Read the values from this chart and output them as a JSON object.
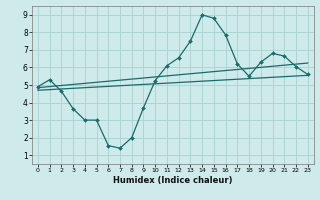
{
  "title": "",
  "xlabel": "Humidex (Indice chaleur)",
  "bg_color": "#ceeaea",
  "grid_color": "#aed4d4",
  "line_color": "#1a6b6b",
  "xlim": [
    -0.5,
    23.5
  ],
  "ylim": [
    0.5,
    9.5
  ],
  "yticks": [
    1,
    2,
    3,
    4,
    5,
    6,
    7,
    8,
    9
  ],
  "xticks": [
    0,
    1,
    2,
    3,
    4,
    5,
    6,
    7,
    8,
    9,
    10,
    11,
    12,
    13,
    14,
    15,
    16,
    17,
    18,
    19,
    20,
    21,
    22,
    23
  ],
  "line1_x": [
    0,
    1,
    2,
    3,
    4,
    5,
    6,
    7,
    8,
    9,
    10,
    11,
    12,
    13,
    14,
    15,
    16,
    17,
    18,
    19,
    20,
    21,
    22,
    23
  ],
  "line1_y": [
    4.9,
    5.3,
    4.65,
    3.65,
    3.0,
    3.0,
    1.55,
    1.4,
    2.0,
    3.7,
    5.25,
    6.1,
    6.55,
    7.5,
    9.0,
    8.8,
    7.85,
    6.2,
    5.5,
    6.3,
    6.8,
    6.65,
    6.05,
    5.6
  ],
  "line2_x": [
    0,
    23
  ],
  "line2_y": [
    4.7,
    5.55
  ],
  "line3_x": [
    0,
    23
  ],
  "line3_y": [
    4.85,
    6.25
  ]
}
